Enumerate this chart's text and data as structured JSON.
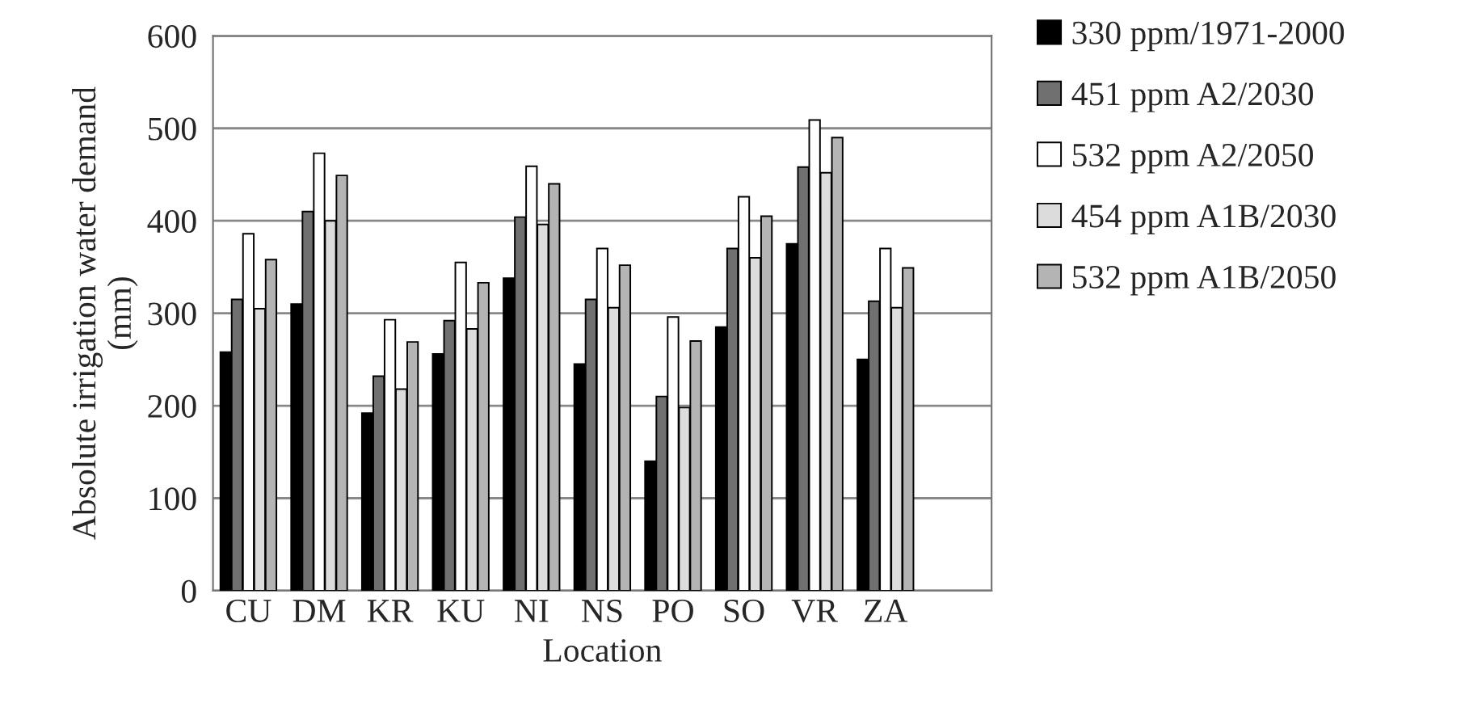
{
  "chart_data": {
    "type": "bar",
    "xlabel": "Location",
    "ylabel": "Absolute irrigation water demand\n(mm)",
    "categories": [
      "CU",
      "DM",
      "KR",
      "KU",
      "NI",
      "NS",
      "PO",
      "SO",
      "VR",
      "ZA",
      null
    ],
    "series": [
      {
        "name": "330 ppm/1971-2000",
        "color": "#000000",
        "values": [
          258,
          310,
          192,
          256,
          338,
          245,
          140,
          285,
          375,
          250,
          null
        ]
      },
      {
        "name": "451 ppm A2/2030",
        "color": "#707070",
        "values": [
          315,
          410,
          232,
          292,
          404,
          315,
          210,
          370,
          458,
          313,
          null
        ]
      },
      {
        "name": "532 ppm A2/2050",
        "color": "#ffffff",
        "values": [
          386,
          473,
          293,
          355,
          459,
          370,
          296,
          426,
          509,
          370,
          null
        ]
      },
      {
        "name": "454 ppm A1B/2030",
        "color": "#dcdcdc",
        "values": [
          305,
          400,
          218,
          283,
          396,
          306,
          198,
          360,
          452,
          306,
          null
        ]
      },
      {
        "name": "532 ppm A1B/2050",
        "color": "#b4b4b4",
        "values": [
          358,
          449,
          269,
          333,
          440,
          352,
          270,
          405,
          490,
          349,
          null
        ]
      }
    ],
    "ylim": [
      0,
      600
    ],
    "yticks": [
      0,
      100,
      200,
      300,
      400,
      500,
      600
    ],
    "grid": "y",
    "legend": "right"
  }
}
